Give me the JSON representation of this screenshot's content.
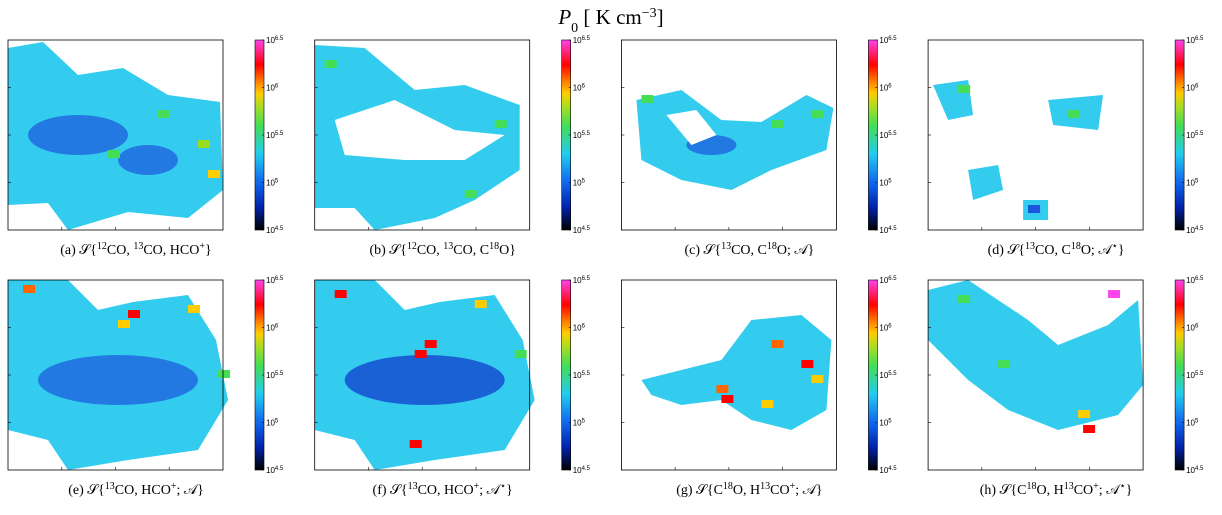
{
  "title": [
    {
      "text": "P"
    },
    {
      "sub": "0"
    },
    {
      "text": " [ K cm"
    },
    {
      "sup": "−3"
    },
    {
      "text": "]"
    }
  ],
  "colorbar": {
    "ticks": [
      {
        "value": 4.5,
        "base": "10",
        "exponent": "4.5"
      },
      {
        "value": 5,
        "base": "10",
        "exponent": "5"
      },
      {
        "value": 5.5,
        "base": "10",
        "exponent": "5.5"
      },
      {
        "value": 6,
        "base": "10",
        "exponent": "6"
      },
      {
        "value": 6.5,
        "base": "10",
        "exponent": "6.5"
      }
    ]
  },
  "panels": [
    {
      "caption": [
        {
          "text": "(a) 𝒮{"
        },
        {
          "sup": "12"
        },
        {
          "text": "CO, "
        },
        {
          "sup": "13"
        },
        {
          "text": "CO, HCO"
        },
        {
          "sup": "+"
        },
        {
          "text": "}"
        }
      ]
    },
    {
      "caption": [
        {
          "text": "(b) 𝒮{"
        },
        {
          "sup": "12"
        },
        {
          "text": "CO, "
        },
        {
          "sup": "13"
        },
        {
          "text": "CO, C"
        },
        {
          "sup": "18"
        },
        {
          "text": "O}"
        }
      ]
    },
    {
      "caption": [
        {
          "text": "(c) 𝒮{"
        },
        {
          "sup": "13"
        },
        {
          "text": "CO, C"
        },
        {
          "sup": "18"
        },
        {
          "text": "O; 𝒜}"
        }
      ]
    },
    {
      "caption": [
        {
          "text": "(d) 𝒮{"
        },
        {
          "sup": "13"
        },
        {
          "text": "CO, C"
        },
        {
          "sup": "18"
        },
        {
          "text": "O; 𝒜"
        },
        {
          "sup": "⋆"
        },
        {
          "text": "}"
        }
      ]
    },
    {
      "caption": [
        {
          "text": "(e) 𝒮{"
        },
        {
          "sup": "13"
        },
        {
          "text": "CO, HCO"
        },
        {
          "sup": "+"
        },
        {
          "text": "; 𝒜}"
        }
      ]
    },
    {
      "caption": [
        {
          "text": "(f) 𝒮{"
        },
        {
          "sup": "13"
        },
        {
          "text": "CO, HCO"
        },
        {
          "sup": "+"
        },
        {
          "text": "; 𝒜"
        },
        {
          "sup": "⋆"
        },
        {
          "text": "}"
        }
      ]
    },
    {
      "caption": [
        {
          "text": "(g) 𝒮{C"
        },
        {
          "sup": "18"
        },
        {
          "text": "O, H"
        },
        {
          "sup": "13"
        },
        {
          "text": "CO"
        },
        {
          "sup": "+"
        },
        {
          "text": "; 𝒜}"
        }
      ]
    },
    {
      "caption": [
        {
          "text": "(h) 𝒮{C"
        },
        {
          "sup": "18"
        },
        {
          "text": "O, H"
        },
        {
          "sup": "13"
        },
        {
          "text": "CO"
        },
        {
          "sup": "+"
        },
        {
          "text": "; 𝒜"
        },
        {
          "sup": "⋆"
        },
        {
          "text": "}"
        }
      ]
    }
  ]
}
